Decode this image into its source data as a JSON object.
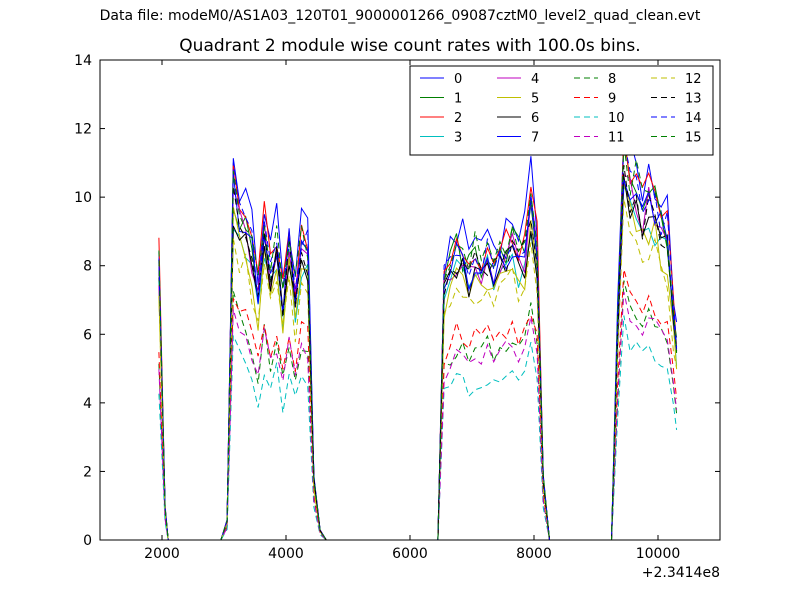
{
  "chart_data": {
    "type": "line",
    "suptitle": "Data file: modeM0/AS1A03_120T01_9000001266_09087cztM0_level2_quad_clean.evt",
    "title": "Quadrant 2 module wise count rates with 100.0s bins.",
    "xlabel": "",
    "ylabel": "",
    "x_offset_label": "+2.3414e8",
    "xlim": [
      1000,
      11000
    ],
    "ylim": [
      0,
      14
    ],
    "xticks": [
      2000,
      4000,
      6000,
      8000,
      10000
    ],
    "yticks": [
      0,
      2,
      4,
      6,
      8,
      10,
      12,
      14
    ],
    "grid": false,
    "legend_position": "top-right",
    "legend_columns": 4,
    "series": [
      {
        "name": "0",
        "color": "#0000ff",
        "dash": "solid"
      },
      {
        "name": "1",
        "color": "#007f00",
        "dash": "solid"
      },
      {
        "name": "2",
        "color": "#ff0000",
        "dash": "solid"
      },
      {
        "name": "3",
        "color": "#00bfbf",
        "dash": "solid"
      },
      {
        "name": "4",
        "color": "#bf00bf",
        "dash": "solid"
      },
      {
        "name": "5",
        "color": "#bfbf00",
        "dash": "solid"
      },
      {
        "name": "6",
        "color": "#000000",
        "dash": "solid"
      },
      {
        "name": "7",
        "color": "#0000ff",
        "dash": "solid"
      },
      {
        "name": "8",
        "color": "#007f00",
        "dash": "dashed"
      },
      {
        "name": "9",
        "color": "#ff0000",
        "dash": "dashed"
      },
      {
        "name": "10",
        "color": "#00bfbf",
        "dash": "dashed"
      },
      {
        "name": "11",
        "color": "#bf00bf",
        "dash": "dashed"
      },
      {
        "name": "12",
        "color": "#bfbf00",
        "dash": "dashed"
      },
      {
        "name": "13",
        "color": "#000000",
        "dash": "dashed"
      },
      {
        "name": "14",
        "color": "#0000ff",
        "dash": "dashed"
      },
      {
        "name": "15",
        "color": "#007f00",
        "dash": "dashed"
      }
    ],
    "segments": [
      {
        "x": [
          1950,
          2050,
          2100
        ],
        "peak": [
          9.1,
          1.0,
          0
        ]
      },
      {
        "x": [
          2100,
          2950,
          3050,
          3150,
          3250,
          3350,
          3450,
          3550,
          3650,
          3750,
          3850,
          3950,
          4050,
          4150,
          4250,
          4350,
          4450,
          4550,
          4650
        ],
        "peak": [
          0,
          0,
          0.6,
          11.5,
          10.8,
          10.5,
          9.5,
          8.0,
          10.2,
          8.8,
          9.8,
          7.8,
          9.7,
          8.0,
          9.7,
          9.5,
          2.0,
          0.3,
          0
        ]
      },
      {
        "x": [
          4650,
          6450,
          6550,
          6650,
          6750,
          6850,
          6950,
          7050,
          7150,
          7250,
          7350,
          7450,
          7550,
          7650,
          7750,
          7850,
          7950,
          8050,
          8150,
          8250
        ],
        "peak": [
          0,
          0,
          8.4,
          9.0,
          9.5,
          9.2,
          8.8,
          9.3,
          9.0,
          9.5,
          9.0,
          9.2,
          9.5,
          9.8,
          9.4,
          9.6,
          11.0,
          9.5,
          2.0,
          0
        ]
      },
      {
        "x": [
          8250,
          9250,
          9350,
          9450,
          9550,
          9650,
          9750,
          9850,
          9950,
          10050,
          10150,
          10250,
          10300
        ],
        "peak": [
          0,
          0,
          7.0,
          12.6,
          11.7,
          11.5,
          10.6,
          11.3,
          11.0,
          10.3,
          10.0,
          7.5,
          6.3
        ]
      }
    ]
  }
}
